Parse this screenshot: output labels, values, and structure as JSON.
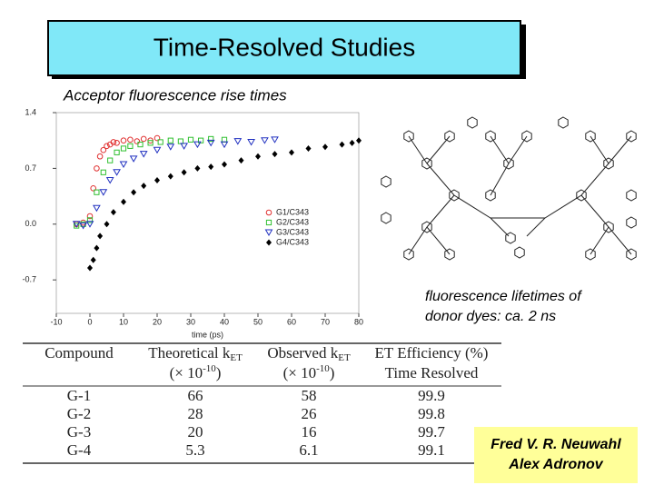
{
  "header": {
    "title": "Time-Resolved Studies",
    "subtitle": "Acceptor fluorescence rise times"
  },
  "chart": {
    "type": "scatter",
    "xlabel": "time (ps)",
    "xlim": [
      -10,
      80
    ],
    "xticks": [
      -10,
      0,
      10,
      20,
      30,
      40,
      50,
      60,
      70,
      80
    ],
    "ylim": [
      -1.12,
      1.4
    ],
    "yticks": [
      -0.7,
      {
        "value": 0,
        "label": "0.0"
      },
      0.7,
      1.4
    ],
    "series": [
      {
        "name": "G1/C343",
        "color": "#e03030",
        "marker": "circle",
        "x": [
          -4,
          -2,
          0,
          1,
          2,
          3,
          4,
          5,
          6,
          7,
          8,
          10,
          12,
          14,
          16,
          18,
          20
        ],
        "values": [
          0.0,
          0.02,
          0.1,
          0.45,
          0.7,
          0.85,
          0.93,
          0.98,
          1.0,
          1.03,
          1.02,
          1.05,
          1.06,
          1.04,
          1.07,
          1.05,
          1.08
        ]
      },
      {
        "name": "G2/C343",
        "color": "#30c030",
        "marker": "square",
        "x": [
          -4,
          -2,
          0,
          2,
          4,
          6,
          8,
          10,
          12,
          15,
          18,
          21,
          24,
          27,
          30,
          33,
          36,
          40
        ],
        "values": [
          -0.02,
          0.0,
          0.05,
          0.4,
          0.65,
          0.8,
          0.9,
          0.95,
          0.98,
          1.0,
          1.02,
          1.03,
          1.05,
          1.04,
          1.06,
          1.05,
          1.07,
          1.06
        ]
      },
      {
        "name": "G3/C343",
        "color": "#2030c0",
        "marker": "triangle-down",
        "x": [
          -4,
          -2,
          0,
          2,
          4,
          6,
          8,
          10,
          13,
          16,
          20,
          24,
          28,
          32,
          36,
          40,
          44,
          48,
          52,
          55
        ],
        "values": [
          0.0,
          -0.02,
          0.0,
          0.2,
          0.4,
          0.55,
          0.65,
          0.75,
          0.82,
          0.88,
          0.93,
          0.97,
          0.98,
          1.0,
          1.02,
          1.0,
          1.04,
          1.03,
          1.05,
          1.06
        ]
      },
      {
        "name": "G4/C343",
        "color": "#000000",
        "marker": "diamond",
        "x": [
          0,
          1,
          2,
          3,
          5,
          7,
          10,
          13,
          16,
          20,
          24,
          28,
          32,
          36,
          40,
          45,
          50,
          55,
          60,
          65,
          70,
          75,
          78,
          80
        ],
        "values": [
          -0.55,
          -0.45,
          -0.3,
          -0.15,
          0.0,
          0.15,
          0.28,
          0.4,
          0.48,
          0.55,
          0.6,
          0.65,
          0.7,
          0.72,
          0.75,
          0.8,
          0.85,
          0.88,
          0.9,
          0.95,
          0.97,
          1.0,
          1.02,
          1.05
        ]
      }
    ]
  },
  "note": {
    "lines": [
      "fluorescence lifetimes of",
      "donor dyes: ca. 2 ns"
    ]
  },
  "table": {
    "columns": [
      {
        "lines": [
          [
            "Compound"
          ]
        ]
      },
      {
        "lines": [
          [
            "Theoretical k",
            "ET"
          ],
          [
            "(× 10",
            "-10",
            ")"
          ]
        ]
      },
      {
        "lines": [
          [
            "Observed k",
            "ET"
          ],
          [
            "(× 10",
            "-10",
            ")"
          ]
        ]
      },
      {
        "lines": [
          [
            "ET Efficiency (%)"
          ],
          [
            "Time Resolved"
          ]
        ]
      }
    ],
    "rows": [
      [
        "G-1",
        "66",
        "58",
        "99.9"
      ],
      [
        "G-2",
        "28",
        "26",
        "99.8"
      ],
      [
        "G-3",
        "20",
        "16",
        "99.7"
      ],
      [
        "G-4",
        "5.3",
        "6.1",
        "99.1"
      ]
    ]
  },
  "authors": {
    "lines": [
      "Fred V. R. Neuwahl",
      "Alex Adronov"
    ]
  }
}
